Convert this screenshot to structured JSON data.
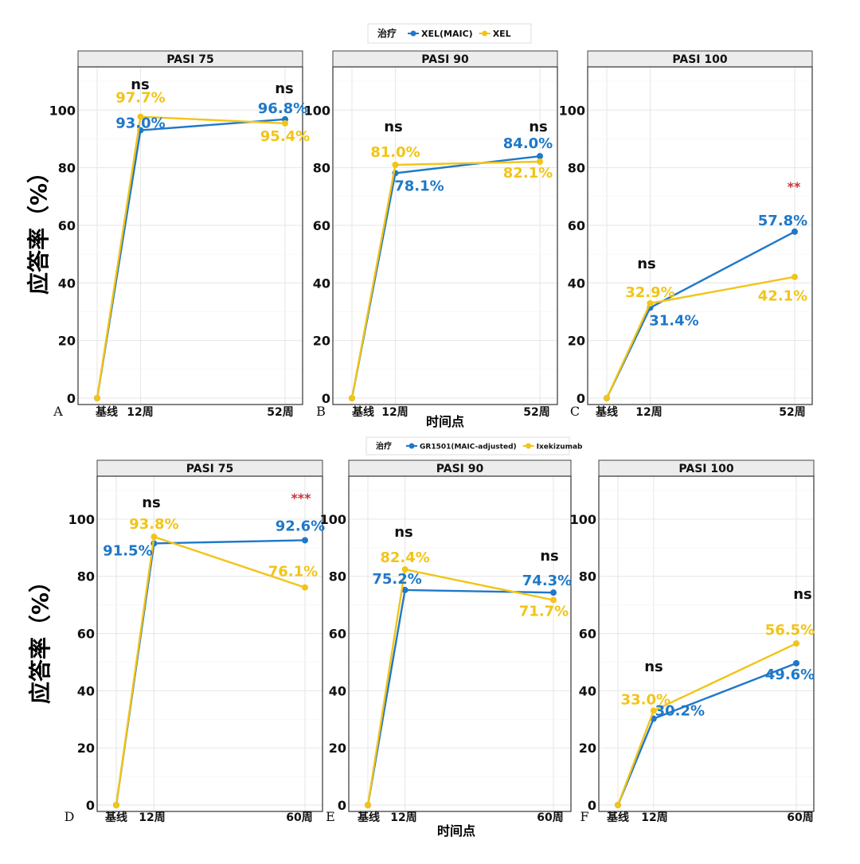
{
  "figure": {
    "colors": {
      "blue": "#1f78c8",
      "yellow": "#f2c418",
      "red": "#cc3333",
      "strip": "#ececec",
      "grid": "#e6e6e6"
    },
    "ylabel": "应答率（%）",
    "xlabel": "时间点"
  },
  "legends": [
    {
      "title": "治疗",
      "items": [
        {
          "label": "XEL(MAIC)",
          "color": "blue"
        },
        {
          "label": "XEL",
          "color": "yellow"
        }
      ]
    },
    {
      "title": "治疗",
      "items": [
        {
          "label": "GR1501(MAIC-adjusted)",
          "color": "blue"
        },
        {
          "label": "Ixekizumab",
          "color": "yellow"
        }
      ]
    }
  ],
  "chart_data": [
    {
      "type": "line",
      "panel_letter": "A",
      "title": "PASI 75",
      "categories": [
        "基线",
        "12周",
        "52周"
      ],
      "x": [
        0,
        12,
        52
      ],
      "ylim": [
        0,
        115
      ],
      "yticks": [
        0,
        20,
        40,
        60,
        80,
        100
      ],
      "series": [
        {
          "name": "XEL(MAIC)",
          "values": [
            0,
            93.0,
            96.8
          ],
          "labels": [
            "",
            "93.0%",
            "96.8%"
          ]
        },
        {
          "name": "XEL",
          "values": [
            0,
            97.7,
            95.4
          ],
          "labels": [
            "",
            "97.7%",
            "95.4%"
          ]
        }
      ],
      "significance": [
        "",
        "ns",
        "ns"
      ]
    },
    {
      "type": "line",
      "panel_letter": "B",
      "title": "PASI 90",
      "categories": [
        "基线",
        "12周",
        "52周"
      ],
      "x": [
        0,
        12,
        52
      ],
      "ylim": [
        0,
        115
      ],
      "yticks": [
        0,
        20,
        40,
        60,
        80,
        100
      ],
      "series": [
        {
          "name": "XEL(MAIC)",
          "values": [
            0,
            78.1,
            84.0
          ],
          "labels": [
            "",
            "78.1%",
            "84.0%"
          ]
        },
        {
          "name": "XEL",
          "values": [
            0,
            81.0,
            82.1
          ],
          "labels": [
            "",
            "81.0%",
            "82.1%"
          ]
        }
      ],
      "significance": [
        "",
        "ns",
        "ns"
      ]
    },
    {
      "type": "line",
      "panel_letter": "C",
      "title": "PASI 100",
      "categories": [
        "基线",
        "12周",
        "52周"
      ],
      "x": [
        0,
        12,
        52
      ],
      "ylim": [
        0,
        115
      ],
      "yticks": [
        0,
        20,
        40,
        60,
        80,
        100
      ],
      "series": [
        {
          "name": "XEL(MAIC)",
          "values": [
            0,
            31.4,
            57.8
          ],
          "labels": [
            "",
            "31.4%",
            "57.8%"
          ]
        },
        {
          "name": "XEL",
          "values": [
            0,
            32.9,
            42.1
          ],
          "labels": [
            "",
            "32.9%",
            "42.1%"
          ]
        }
      ],
      "significance": [
        "",
        "ns",
        "**"
      ]
    },
    {
      "type": "line",
      "panel_letter": "D",
      "title": "PASI 75",
      "categories": [
        "基线",
        "12周",
        "60周"
      ],
      "x": [
        0,
        12,
        60
      ],
      "ylim": [
        0,
        115
      ],
      "yticks": [
        0,
        20,
        40,
        60,
        80,
        100
      ],
      "series": [
        {
          "name": "GR1501(MAIC-adjusted)",
          "values": [
            0,
            91.5,
            92.6
          ],
          "labels": [
            "",
            "91.5%",
            "92.6%"
          ]
        },
        {
          "name": "Ixekizumab",
          "values": [
            0,
            93.8,
            76.1
          ],
          "labels": [
            "",
            "93.8%",
            "76.1%"
          ]
        }
      ],
      "significance": [
        "",
        "ns",
        "***"
      ]
    },
    {
      "type": "line",
      "panel_letter": "E",
      "title": "PASI 90",
      "categories": [
        "基线",
        "12周",
        "60周"
      ],
      "x": [
        0,
        12,
        60
      ],
      "ylim": [
        0,
        115
      ],
      "yticks": [
        0,
        20,
        40,
        60,
        80,
        100
      ],
      "series": [
        {
          "name": "GR1501(MAIC-adjusted)",
          "values": [
            0,
            75.2,
            74.3
          ],
          "labels": [
            "",
            "75.2%",
            "74.3%"
          ]
        },
        {
          "name": "Ixekizumab",
          "values": [
            0,
            82.4,
            71.7
          ],
          "labels": [
            "",
            "82.4%",
            "71.7%"
          ]
        }
      ],
      "significance": [
        "",
        "ns",
        "ns"
      ]
    },
    {
      "type": "line",
      "panel_letter": "F",
      "title": "PASI 100",
      "categories": [
        "基线",
        "12周",
        "60周"
      ],
      "x": [
        0,
        12,
        60
      ],
      "ylim": [
        0,
        115
      ],
      "yticks": [
        0,
        20,
        40,
        60,
        80,
        100
      ],
      "series": [
        {
          "name": "GR1501(MAIC-adjusted)",
          "values": [
            0,
            30.2,
            49.6
          ],
          "labels": [
            "",
            "30.2%",
            "49.6%"
          ]
        },
        {
          "name": "Ixekizumab",
          "values": [
            0,
            33.0,
            56.5
          ],
          "labels": [
            "",
            "33.0%",
            "56.5%"
          ]
        }
      ],
      "significance": [
        "",
        "ns",
        "ns"
      ]
    }
  ]
}
